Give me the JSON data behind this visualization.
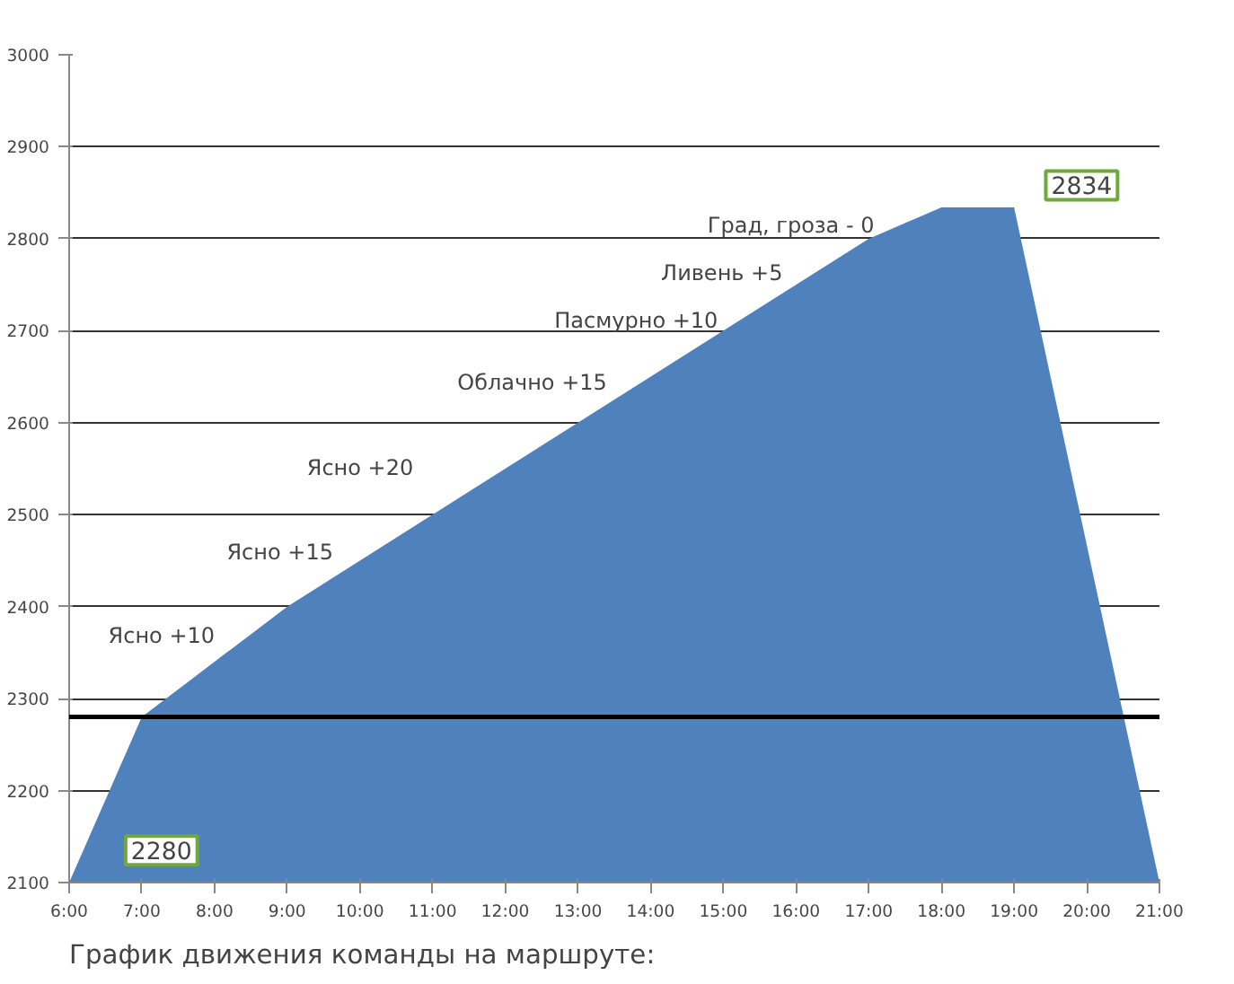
{
  "chart_data": {
    "type": "area",
    "x": [
      6,
      7,
      9,
      17,
      18,
      19,
      21
    ],
    "series": [
      {
        "color": "#4f81bd",
        "values": [
          2100,
          2280,
          2400,
          2800,
          2834,
          2834,
          2100
        ]
      }
    ],
    "ref_lines": [
      {
        "axis": "y",
        "value": 2280,
        "color": "#000000"
      }
    ],
    "xlim": [
      6,
      21
    ],
    "xticks": [
      {
        "value": 6,
        "label": "6:00"
      },
      {
        "value": 7,
        "label": "7:00"
      },
      {
        "value": 8,
        "label": "8:00"
      },
      {
        "value": 9,
        "label": "9:00"
      },
      {
        "value": 10,
        "label": "10:00"
      },
      {
        "value": 11,
        "label": "11:00"
      },
      {
        "value": 12,
        "label": "12:00"
      },
      {
        "value": 13,
        "label": "13:00"
      },
      {
        "value": 14,
        "label": "14:00"
      },
      {
        "value": 15,
        "label": "15:00"
      },
      {
        "value": 16,
        "label": "16:00"
      },
      {
        "value": 17,
        "label": "17:00"
      },
      {
        "value": 18,
        "label": "18:00"
      },
      {
        "value": 19,
        "label": "19:00"
      },
      {
        "value": 20,
        "label": "20:00"
      },
      {
        "value": 21,
        "label": "21:00"
      }
    ],
    "ylim": [
      2100,
      3000
    ],
    "yticks": [
      2100,
      2200,
      2300,
      2400,
      2500,
      2600,
      2700,
      2800,
      2900,
      3000
    ],
    "grid": "y",
    "annotations": [
      "Ясно +10",
      "Ясно +15",
      "Ясно  +20",
      "Облачно +15",
      "Пасмурно +10",
      "Ливень +5",
      "Град, гроза - 0",
      {
        "text": "2834",
        "x": 19.93,
        "y": 2858
      },
      {
        "text": "2280",
        "x": 7.27,
        "y": 2135
      },
      "График  движения команды на маршруте:"
    ]
  }
}
